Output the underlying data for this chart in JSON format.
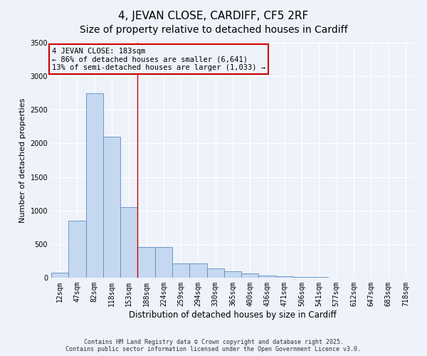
{
  "title": "4, JEVAN CLOSE, CARDIFF, CF5 2RF",
  "subtitle": "Size of property relative to detached houses in Cardiff",
  "xlabel": "Distribution of detached houses by size in Cardiff",
  "ylabel": "Number of detached properties",
  "categories": [
    "12sqm",
    "47sqm",
    "82sqm",
    "118sqm",
    "153sqm",
    "188sqm",
    "224sqm",
    "259sqm",
    "294sqm",
    "330sqm",
    "365sqm",
    "400sqm",
    "436sqm",
    "471sqm",
    "506sqm",
    "541sqm",
    "577sqm",
    "612sqm",
    "647sqm",
    "683sqm",
    "718sqm"
  ],
  "values": [
    75,
    850,
    2750,
    2100,
    1050,
    460,
    460,
    210,
    210,
    140,
    100,
    60,
    30,
    20,
    10,
    8,
    5,
    5,
    3,
    2,
    2
  ],
  "bar_color": "#c5d8f0",
  "bar_edge_color": "#5a8fc0",
  "vline_color": "#cc0000",
  "annotation_text": "4 JEVAN CLOSE: 183sqm\n← 86% of detached houses are smaller (6,641)\n13% of semi-detached houses are larger (1,033) →",
  "ylim": [
    0,
    3500
  ],
  "yticks": [
    0,
    500,
    1000,
    1500,
    2000,
    2500,
    3000,
    3500
  ],
  "background_color": "#eef2fa",
  "grid_color": "#ffffff",
  "footer": "Contains HM Land Registry data © Crown copyright and database right 2025.\nContains public sector information licensed under the Open Government Licence v3.0.",
  "title_fontsize": 11,
  "subtitle_fontsize": 10,
  "tick_fontsize": 7,
  "ylabel_fontsize": 8,
  "xlabel_fontsize": 8.5,
  "footer_fontsize": 6,
  "annotation_fontsize": 7.5
}
